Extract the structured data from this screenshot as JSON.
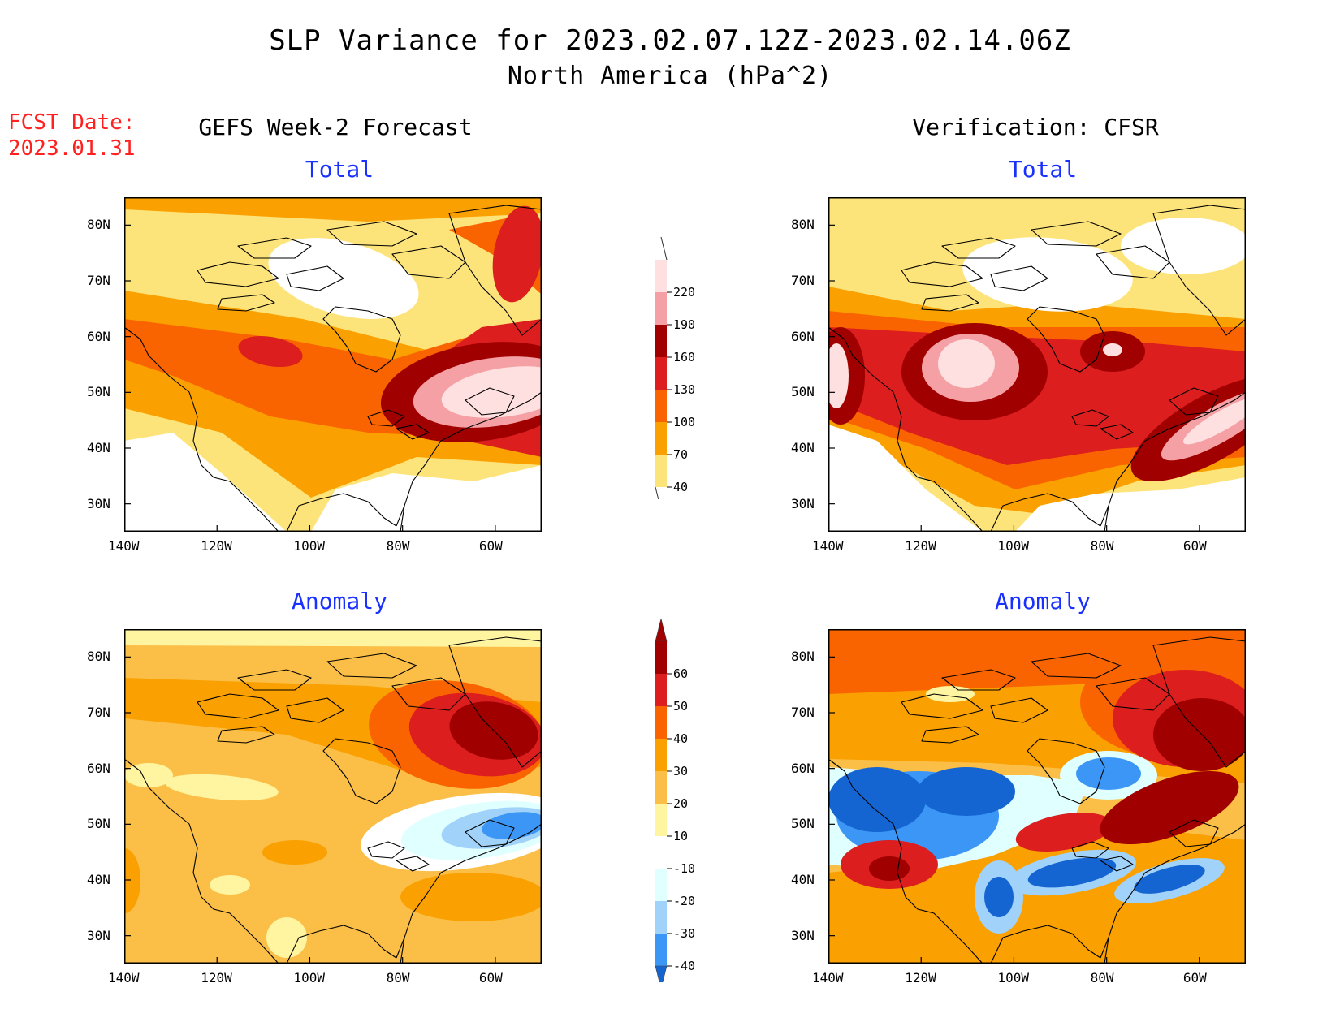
{
  "header": {
    "title": "SLP Variance for 2023.02.07.12Z-2023.02.14.06Z",
    "subtitle": "North America (hPa^2)",
    "fcst_line1": "FCST Date:",
    "fcst_line2": "2023.01.31",
    "left_heading": "GEFS Week-2 Forecast",
    "right_heading": "Verification: CFSR"
  },
  "panels": {
    "forecast_total": {
      "title": "Total"
    },
    "verif_total": {
      "title": "Total"
    },
    "forecast_anomaly": {
      "title": "Anomaly"
    },
    "verif_anomaly": {
      "title": "Anomaly"
    }
  },
  "axes": {
    "lat_labels": [
      "80N",
      "70N",
      "60N",
      "50N",
      "40N",
      "30N"
    ],
    "lon_labels": [
      "140W",
      "120W",
      "100W",
      "80W",
      "60W"
    ],
    "lat_range": [
      25,
      85
    ],
    "lon_range": [
      -140,
      -50
    ]
  },
  "colorbars": {
    "total": {
      "levels": [
        "220",
        "190",
        "160",
        "130",
        "100",
        "70",
        "40"
      ],
      "colors": [
        "#ffe0e0",
        "#f4a0a4",
        "#a00000",
        "#dc1e1e",
        "#fa6400",
        "#faa000",
        "#fde47a"
      ]
    },
    "anomaly": {
      "levels": [
        "60",
        "50",
        "40",
        "30",
        "20",
        "10",
        "-10",
        "-20",
        "-30",
        "-40"
      ],
      "colors": [
        "#a00000",
        "#dc1e1e",
        "#fa6400",
        "#faa000",
        "#fbbe46",
        "#fff5a0",
        "#ffffff",
        "#e0ffff",
        "#a0d2fa",
        "#3c96f5",
        "#1464d2"
      ]
    }
  }
}
